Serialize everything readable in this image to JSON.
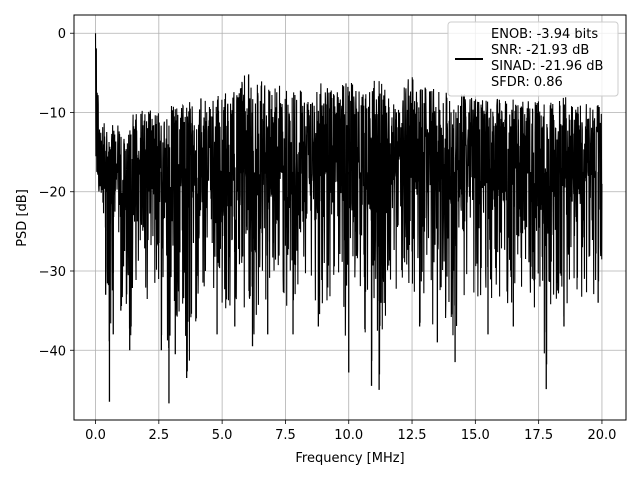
{
  "chart_data": {
    "type": "line",
    "title": "",
    "xlabel": "Frequency [MHz]",
    "ylabel": "PSD [dB]",
    "xlim": [
      -0.85,
      20.95
    ],
    "ylim": [
      -48.8,
      2.3
    ],
    "xticks": [
      0.0,
      2.5,
      5.0,
      7.5,
      10.0,
      12.5,
      15.0,
      17.5,
      20.0
    ],
    "xtick_labels": [
      "0.0",
      "2.5",
      "5.0",
      "7.5",
      "10.0",
      "12.5",
      "15.0",
      "17.5",
      "20.0"
    ],
    "yticks": [
      0,
      -10,
      -20,
      -30,
      -40
    ],
    "ytick_labels": [
      "0",
      "−10",
      "−20",
      "−30",
      "−40"
    ],
    "grid": true,
    "legend_position": "top-right",
    "legend_lines": [
      "ENOB: -3.94 bits",
      "SNR: -21.93 dB",
      "SINAD: -21.96 dB",
      "SFDR: 0.86"
    ],
    "series": [
      {
        "color": "#000000",
        "note_x_range": [
          0.0,
          20.0
        ],
        "x": [
          0.0,
          0.02,
          0.05,
          0.1,
          0.15,
          0.2,
          0.3,
          0.35,
          0.4,
          0.5,
          0.55,
          0.65,
          0.7,
          0.8,
          1.0,
          1.2,
          1.35,
          1.6,
          2.0,
          2.4,
          2.6,
          2.75,
          2.9,
          3.0,
          3.15,
          3.4,
          3.6,
          4.0,
          4.4,
          4.8,
          5.0,
          5.5,
          6.0,
          6.2,
          6.5,
          6.8,
          7.0,
          7.5,
          7.8,
          8.0,
          8.5,
          8.8,
          9.0,
          9.5,
          10.0,
          10.5,
          10.9,
          11.1,
          11.2,
          11.5,
          12.0,
          12.5,
          12.8,
          13.0,
          13.5,
          14.0,
          14.2,
          14.5,
          15.0,
          15.5,
          16.0,
          16.5,
          17.0,
          17.4,
          17.8,
          18.0,
          18.5,
          19.0,
          19.5,
          19.85,
          20.0
        ],
        "upper": [
          0.0,
          -1.0,
          -3.0,
          -7.0,
          -10.0,
          -12.0,
          -11.0,
          -10.0,
          -12.0,
          -13.0,
          -11.0,
          -12.0,
          -11.0,
          -12.0,
          -11.0,
          -10.0,
          -10.5,
          -10.0,
          -9.5,
          -10.0,
          -9.0,
          -10.0,
          -8.5,
          -8.0,
          -9.0,
          -9.0,
          -8.5,
          -8.0,
          -8.5,
          -8.0,
          -7.5,
          -7.0,
          -4.5,
          -7.0,
          -5.0,
          -6.5,
          -6.0,
          -7.0,
          -5.5,
          -6.0,
          -7.0,
          -6.0,
          -6.5,
          -7.0,
          -6.0,
          -7.0,
          -6.0,
          -5.5,
          -6.0,
          -7.0,
          -8.0,
          -4.5,
          -7.0,
          -6.5,
          -7.0,
          -7.5,
          -8.0,
          -7.5,
          -8.0,
          -8.0,
          -8.0,
          -8.0,
          -8.5,
          -8.0,
          -8.5,
          -8.5,
          -8.0,
          -8.5,
          -9.0,
          -9.0,
          -10.0
        ],
        "lower": [
          -7.0,
          -10.0,
          -15.0,
          -20.0,
          -22.0,
          -25.0,
          -29.0,
          -31.0,
          -33.0,
          -32.0,
          -46.5,
          -33.0,
          -38.0,
          -30.0,
          -35.0,
          -34.0,
          -40.0,
          -33.0,
          -34.0,
          -36.0,
          -40.0,
          -36.0,
          -46.7,
          -34.0,
          -40.5,
          -37.0,
          -43.5,
          -36.0,
          -33.0,
          -38.0,
          -34.0,
          -37.0,
          -35.0,
          -39.5,
          -34.0,
          -38.0,
          -33.0,
          -35.0,
          -38.0,
          -34.0,
          -33.0,
          -37.0,
          -34.0,
          -33.0,
          -42.8,
          -35.0,
          -44.5,
          -36.0,
          -45.0,
          -35.0,
          -33.0,
          -34.0,
          -37.0,
          -33.0,
          -39.0,
          -36.0,
          -41.5,
          -33.0,
          -35.0,
          -38.0,
          -33.0,
          -37.0,
          -34.0,
          -35.0,
          -44.9,
          -33.0,
          -37.0,
          -34.0,
          -33.0,
          -34.0,
          -32.0
        ],
        "midline": -17.5
      }
    ]
  }
}
